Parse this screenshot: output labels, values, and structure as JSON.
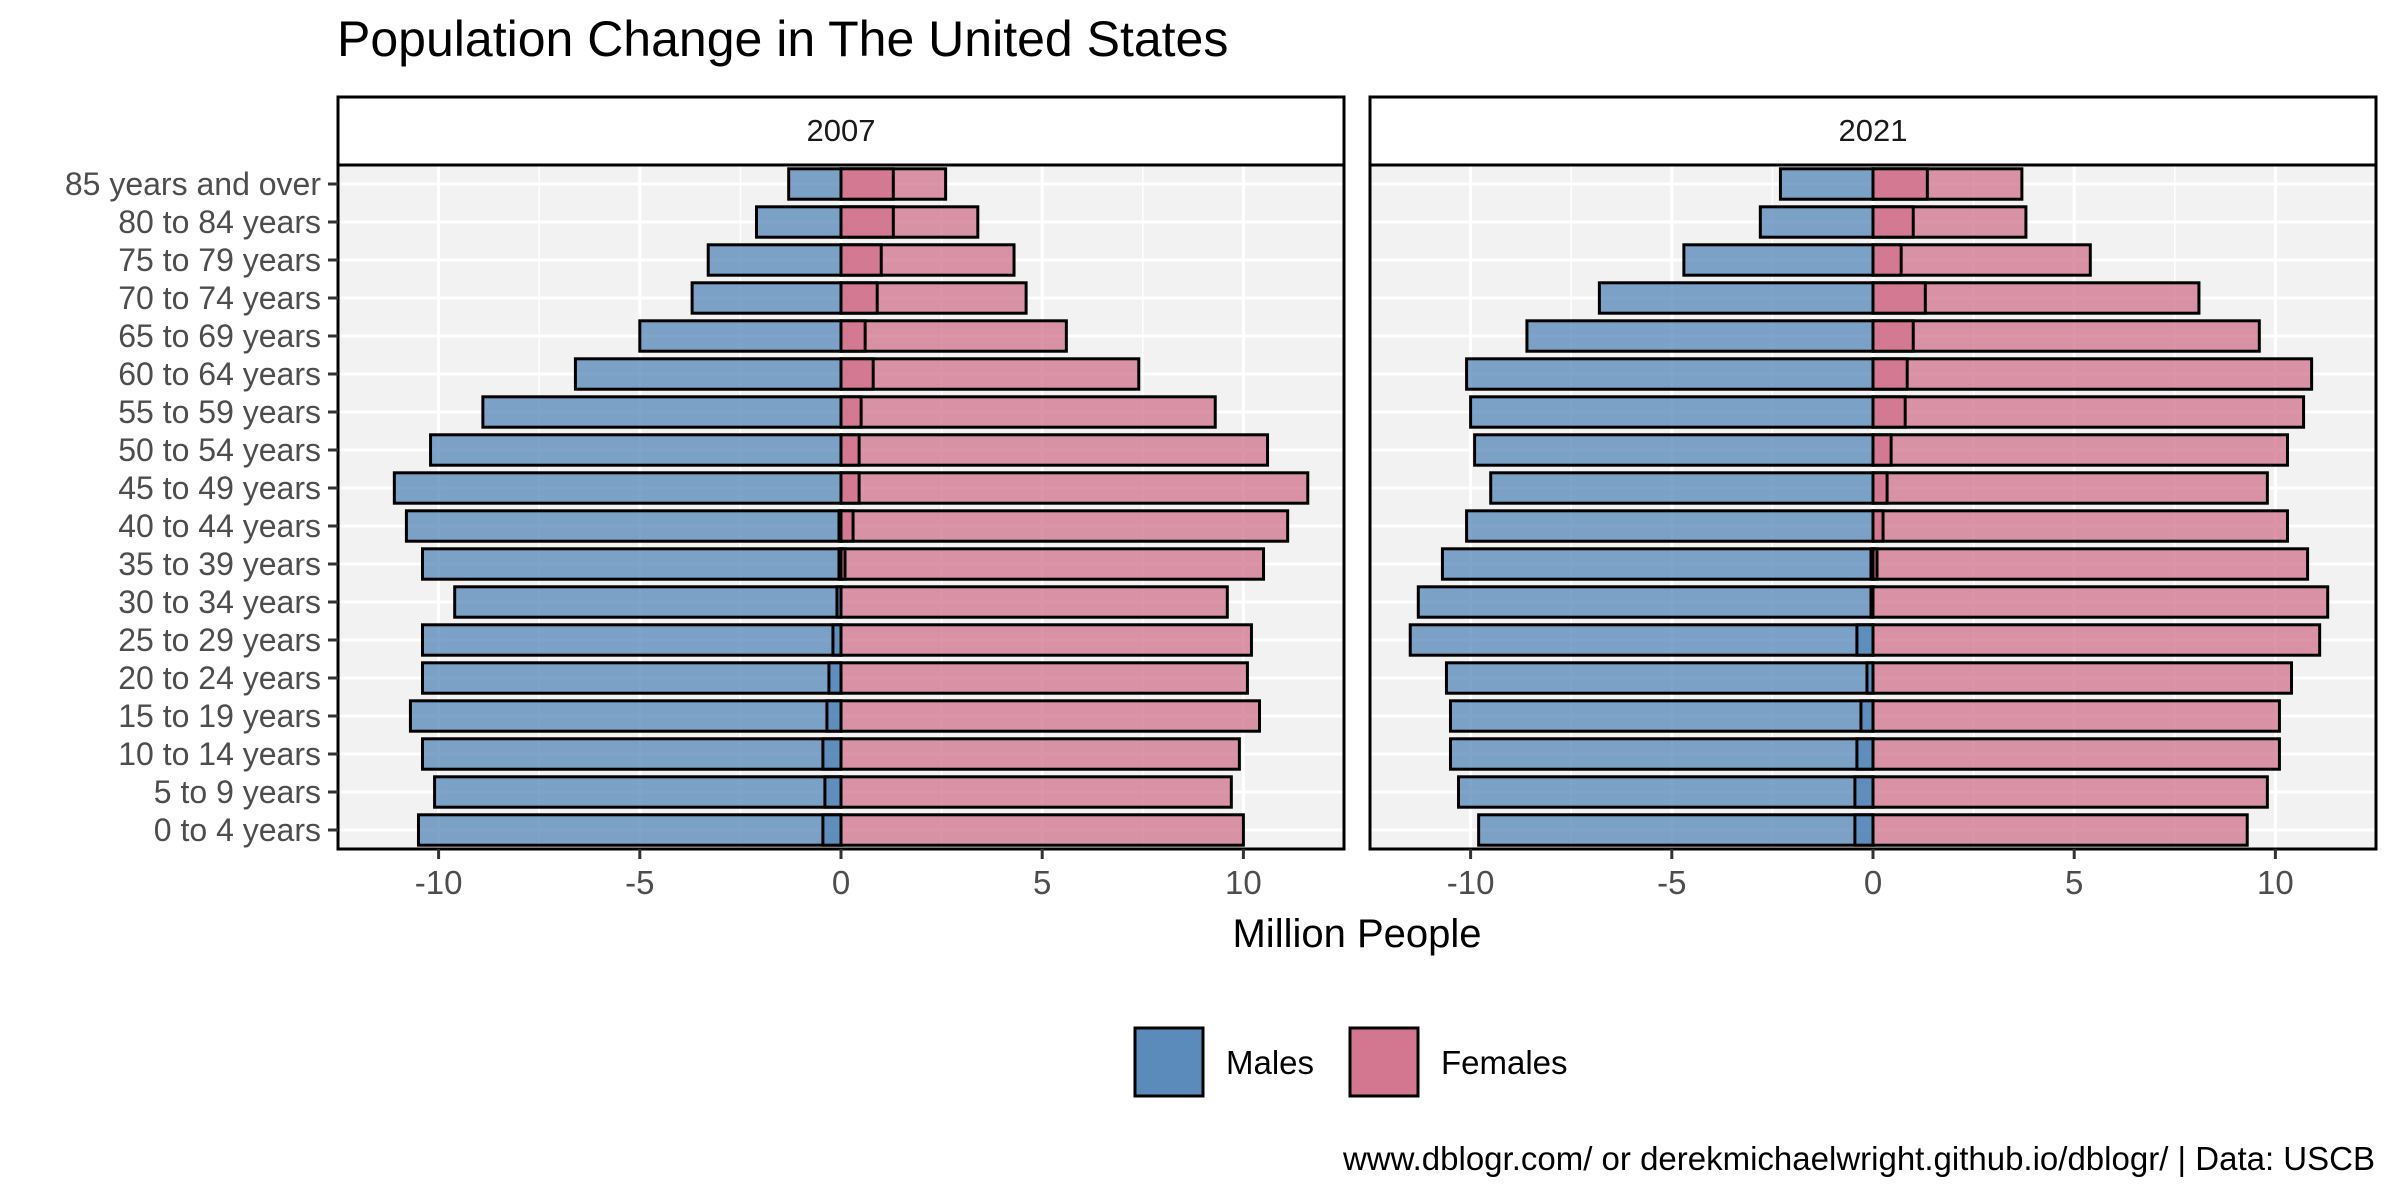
{
  "chart_data": {
    "type": "bar",
    "title": "Population Change in The United States",
    "xlabel": "Million People",
    "ylabel": "",
    "caption": "www.dblogr.com/ or derekmichaelwright.github.io/dblogr/ | Data: USCB",
    "xlim": [
      -12.5,
      12.5
    ],
    "x_ticks": [
      -10,
      -5,
      0,
      5,
      10
    ],
    "x_tick_labels": [
      "-10",
      "-5",
      "0",
      "5",
      "10"
    ],
    "grid": true,
    "legend_position": "bottom",
    "categories": [
      "0 to 4 years",
      "5 to 9 years",
      "10 to 14 years",
      "15 to 19 years",
      "20 to 24 years",
      "25 to 29 years",
      "30 to 34 years",
      "35 to 39 years",
      "40 to 44 years",
      "45 to 49 years",
      "50 to 54 years",
      "55 to 59 years",
      "60 to 64 years",
      "65 to 69 years",
      "70 to 74 years",
      "75 to 79 years",
      "80 to 84 years",
      "85 years and over"
    ],
    "series_legend": [
      {
        "name": "Males",
        "color": "#5b8bbb"
      },
      {
        "name": "Females",
        "color": "#d2778f"
      }
    ],
    "colors": {
      "males": "#5b8bbb",
      "females": "#d2778f",
      "panel_bg": "#f2f2f2",
      "grid": "#ffffff",
      "strip_bg": "#ffffff"
    },
    "panels": [
      {
        "label": "2007",
        "males": [
          -10.5,
          -10.1,
          -10.4,
          -10.7,
          -10.4,
          -10.4,
          -9.6,
          -10.4,
          -10.8,
          -11.1,
          -10.2,
          -8.9,
          -6.6,
          -5.0,
          -3.7,
          -3.3,
          -2.1,
          -1.3
        ],
        "females": [
          10.0,
          9.7,
          9.9,
          10.4,
          10.1,
          10.2,
          9.6,
          10.5,
          11.1,
          11.6,
          10.6,
          9.3,
          7.4,
          5.6,
          4.6,
          4.3,
          3.4,
          2.6
        ],
        "males_overlap": [
          -0.45,
          -0.4,
          -0.45,
          -0.35,
          -0.3,
          -0.2,
          -0.1,
          -0.05,
          -0.05,
          0.0,
          0.0,
          0.0,
          0.0,
          0.0,
          0.0,
          0.0,
          0.0,
          0.0
        ],
        "females_overlap": [
          0.0,
          0.0,
          0.0,
          0.0,
          0.0,
          0.0,
          0.0,
          0.1,
          0.3,
          0.45,
          0.45,
          0.5,
          0.8,
          0.6,
          0.9,
          1.0,
          1.3,
          1.3
        ]
      },
      {
        "label": "2021",
        "males": [
          -9.8,
          -10.3,
          -10.5,
          -10.5,
          -10.6,
          -11.5,
          -11.3,
          -10.7,
          -10.1,
          -9.5,
          -9.9,
          -10.0,
          -10.1,
          -8.6,
          -6.8,
          -4.7,
          -2.8,
          -2.3
        ],
        "females": [
          9.3,
          9.8,
          10.1,
          10.1,
          10.4,
          11.1,
          11.3,
          10.8,
          10.3,
          9.8,
          10.3,
          10.7,
          10.9,
          9.6,
          8.1,
          5.4,
          3.8,
          3.7
        ],
        "males_overlap": [
          -0.45,
          -0.45,
          -0.4,
          -0.3,
          -0.15,
          -0.4,
          -0.05,
          -0.05,
          0.0,
          0.0,
          0.0,
          0.0,
          0.0,
          0.0,
          0.0,
          0.0,
          0.0,
          0.0
        ],
        "females_overlap": [
          0.0,
          0.0,
          0.0,
          0.0,
          0.0,
          0.0,
          0.0,
          0.1,
          0.25,
          0.35,
          0.45,
          0.8,
          0.85,
          1.0,
          1.3,
          0.7,
          1.0,
          1.35
        ]
      }
    ]
  }
}
